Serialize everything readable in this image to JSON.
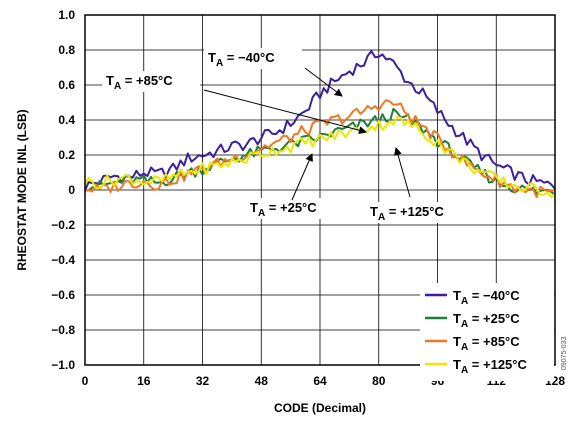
{
  "chart_data": {
    "type": "line",
    "xlabel": "CODE (Decimal)",
    "ylabel": "RHEOSTAT MODE INL (LSB)",
    "xlim": [
      0,
      128
    ],
    "ylim": [
      -1.0,
      1.0
    ],
    "x_ticks": [
      "0",
      "16",
      "32",
      "48",
      "64",
      "80",
      "96",
      "112",
      "128"
    ],
    "y_ticks": [
      "1.0",
      "0.8",
      "0.6",
      "0.4",
      "0.2",
      "0",
      "−0.2",
      "−0.4",
      "−0.6",
      "−0.8",
      "−1.0"
    ],
    "grid": true,
    "legend_position": "bottom-right",
    "x": [
      0,
      4,
      8,
      12,
      16,
      20,
      24,
      28,
      32,
      36,
      40,
      44,
      48,
      52,
      56,
      60,
      64,
      68,
      72,
      76,
      80,
      84,
      88,
      92,
      96,
      100,
      104,
      108,
      112,
      116,
      120,
      124,
      128
    ],
    "series": [
      {
        "name": "T_A = −40°C",
        "color": "#3b1f9e",
        "values": [
          0.02,
          0.05,
          0.08,
          0.07,
          0.1,
          0.09,
          0.12,
          0.18,
          0.2,
          0.22,
          0.25,
          0.26,
          0.3,
          0.33,
          0.38,
          0.45,
          0.55,
          0.62,
          0.68,
          0.73,
          0.79,
          0.72,
          0.62,
          0.55,
          0.45,
          0.36,
          0.28,
          0.2,
          0.14,
          0.1,
          0.06,
          0.04,
          0.02
        ]
      },
      {
        "name": "T_A = +25°C",
        "color": "#1e7f3a",
        "values": [
          0.03,
          0.02,
          0.04,
          0.06,
          0.05,
          0.04,
          0.07,
          0.1,
          0.12,
          0.15,
          0.18,
          0.2,
          0.22,
          0.24,
          0.26,
          0.28,
          0.3,
          0.33,
          0.35,
          0.38,
          0.4,
          0.43,
          0.4,
          0.35,
          0.28,
          0.22,
          0.15,
          0.1,
          0.05,
          0.02,
          0.0,
          -0.01,
          0.0
        ]
      },
      {
        "name": "T_A = +85°C",
        "color": "#f07820",
        "values": [
          0.01,
          0.0,
          0.02,
          0.04,
          0.05,
          0.03,
          0.06,
          0.09,
          0.12,
          0.15,
          0.18,
          0.21,
          0.24,
          0.27,
          0.3,
          0.34,
          0.37,
          0.4,
          0.42,
          0.45,
          0.49,
          0.5,
          0.43,
          0.36,
          0.29,
          0.22,
          0.15,
          0.1,
          0.06,
          0.02,
          0.0,
          -0.01,
          -0.02
        ]
      },
      {
        "name": "T_A = +125°C",
        "color": "#e8e800",
        "values": [
          0.05,
          0.04,
          0.06,
          0.07,
          0.05,
          0.05,
          0.07,
          0.1,
          0.12,
          0.14,
          0.16,
          0.18,
          0.21,
          0.23,
          0.25,
          0.27,
          0.29,
          0.31,
          0.33,
          0.35,
          0.37,
          0.4,
          0.38,
          0.33,
          0.27,
          0.21,
          0.15,
          0.1,
          0.06,
          0.03,
          0.01,
          0.0,
          -0.01
        ]
      }
    ],
    "annotations": [
      {
        "label": "T_A = −40°C",
        "series": 0
      },
      {
        "label": "T_A = +85°C",
        "series": 2
      },
      {
        "label": "T_A = +25°C",
        "series": 1
      },
      {
        "label": "T_A = +125°C",
        "series": 3
      }
    ],
    "watermark": "09075-033"
  }
}
